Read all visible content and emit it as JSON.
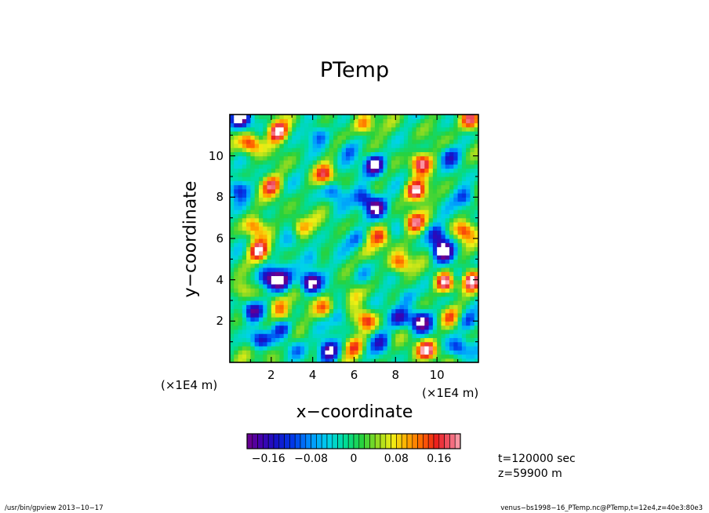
{
  "chart_data": {
    "type": "heatmap",
    "title": "PTemp",
    "xlabel": "x−coordinate",
    "ylabel": "y−coordinate",
    "x_scale_label": "(×1E4 m)",
    "y_scale_label": "(×1E4 m)",
    "xlim": [
      0,
      12
    ],
    "ylim": [
      0,
      12
    ],
    "x_ticks": [
      "2",
      "4",
      "6",
      "8",
      "10"
    ],
    "y_ticks": [
      "2",
      "4",
      "6",
      "8",
      "10"
    ],
    "grid": false,
    "colorbar": {
      "ticks": [
        "−0.16",
        "−0.08",
        "0",
        "0.08",
        "0.16"
      ],
      "tick_values": [
        -0.16,
        -0.08,
        0,
        0.08,
        0.16
      ],
      "range": [
        -0.2,
        0.2
      ],
      "n_levels": 40
    },
    "field_range": [
      -0.23,
      0.23
    ],
    "blobs": [
      [
        0.5,
        11.8,
        -0.22
      ],
      [
        2.3,
        11.2,
        0.21
      ],
      [
        1.0,
        10.6,
        0.17
      ],
      [
        4.3,
        11.0,
        -0.12
      ],
      [
        6.5,
        11.5,
        0.15
      ],
      [
        7.0,
        9.6,
        -0.25
      ],
      [
        9.2,
        9.7,
        0.2
      ],
      [
        10.6,
        10.0,
        -0.12
      ],
      [
        11.6,
        11.7,
        0.19
      ],
      [
        0.4,
        8.4,
        -0.14
      ],
      [
        2.0,
        8.6,
        0.15
      ],
      [
        4.6,
        9.1,
        0.14
      ],
      [
        5.0,
        8.3,
        -0.12
      ],
      [
        6.5,
        8.0,
        -0.16
      ],
      [
        7.1,
        7.5,
        -0.22
      ],
      [
        9.0,
        8.3,
        0.23
      ],
      [
        11.4,
        8.0,
        -0.13
      ],
      [
        1.2,
        6.6,
        0.12
      ],
      [
        1.4,
        5.4,
        0.2
      ],
      [
        3.4,
        6.6,
        0.12
      ],
      [
        4.0,
        5.0,
        -0.1
      ],
      [
        6.2,
        6.0,
        -0.1
      ],
      [
        7.3,
        6.1,
        0.14
      ],
      [
        8.9,
        6.8,
        0.16
      ],
      [
        10.0,
        6.2,
        -0.15
      ],
      [
        10.3,
        5.4,
        -0.22
      ],
      [
        11.3,
        6.4,
        0.15
      ],
      [
        11.0,
        4.2,
        -0.13
      ],
      [
        1.8,
        4.1,
        -0.18
      ],
      [
        2.4,
        4.0,
        -0.22
      ],
      [
        3.9,
        3.9,
        -0.24
      ],
      [
        6.5,
        4.2,
        -0.09
      ],
      [
        8.2,
        4.8,
        0.15
      ],
      [
        10.4,
        3.9,
        0.23
      ],
      [
        11.6,
        4.0,
        0.22
      ],
      [
        0.6,
        3.5,
        0.1
      ],
      [
        2.3,
        2.8,
        0.12
      ],
      [
        2.6,
        2.2,
        0.1
      ],
      [
        1.1,
        2.5,
        -0.22
      ],
      [
        2.5,
        1.7,
        -0.15
      ],
      [
        4.6,
        2.6,
        0.13
      ],
      [
        5.3,
        2.2,
        -0.1
      ],
      [
        6.6,
        2.1,
        0.15
      ],
      [
        8.2,
        2.2,
        -0.14
      ],
      [
        9.2,
        2.0,
        -0.22
      ],
      [
        10.6,
        2.2,
        0.1
      ],
      [
        11.5,
        2.0,
        -0.12
      ],
      [
        1.5,
        1.1,
        -0.18
      ],
      [
        1.8,
        0.6,
        0.1
      ],
      [
        3.2,
        0.7,
        -0.1
      ],
      [
        4.8,
        0.6,
        -0.22
      ],
      [
        6.0,
        0.8,
        0.13
      ],
      [
        7.3,
        1.0,
        -0.12
      ],
      [
        9.5,
        0.6,
        0.21
      ],
      [
        11.0,
        0.7,
        -0.14
      ],
      [
        5.9,
        3.3,
        0.08
      ],
      [
        6.8,
        5.3,
        0.06
      ],
      [
        3.0,
        5.8,
        -0.06
      ],
      [
        8.5,
        3.2,
        -0.1
      ],
      [
        5.7,
        10.3,
        -0.08
      ]
    ]
  },
  "info": {
    "time": "t=120000 sec",
    "z": "z=59900  m"
  },
  "footer": {
    "left": "/usr/bin/gpview   2013−10−17",
    "right": "venus−bs1998−16_PTemp.nc@PTemp,t=12e4,z=40e3:80e3"
  }
}
